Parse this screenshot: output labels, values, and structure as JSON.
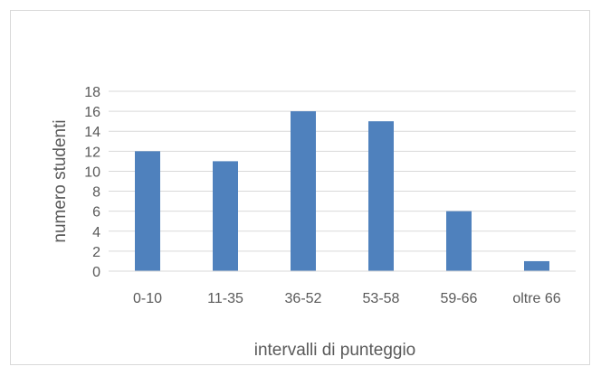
{
  "chart_data": {
    "type": "bar",
    "categories": [
      "0-10",
      "11-35",
      "36-52",
      "53-58",
      "59-66",
      "oltre 66"
    ],
    "values": [
      12,
      11,
      16,
      15,
      6,
      1
    ],
    "xlabel": "intervalli di punteggio",
    "ylabel": "numero studenti",
    "ylim": [
      0,
      18
    ],
    "yticks": [
      0,
      2,
      4,
      6,
      8,
      10,
      12,
      14,
      16,
      18
    ],
    "grid": true,
    "legend": "none",
    "bar_color": "#4F81BD",
    "grid_color": "#d9d9d9"
  }
}
